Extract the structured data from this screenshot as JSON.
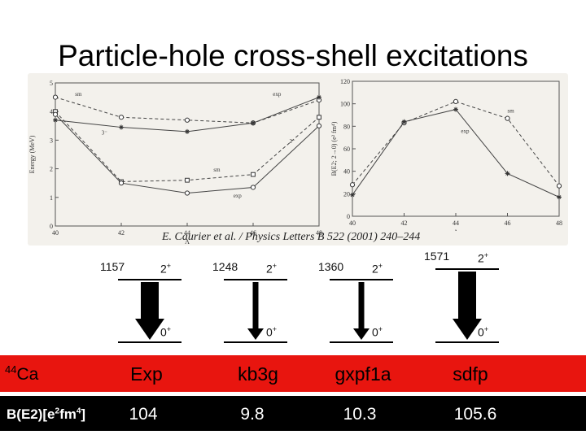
{
  "title": "Particle-hole cross-shell excitations",
  "citation": "E. Caurier et al. / Physics Letters B 522 (2001) 240–244",
  "chart_data": [
    {
      "type": "line",
      "xlabel": "A",
      "ylabel": "Energy (MeV)",
      "xlim": [
        40,
        48
      ],
      "ylim": [
        0,
        5
      ],
      "xticks": [
        "40",
        "42",
        "44",
        "46",
        "48"
      ],
      "yticks": [
        "0",
        "1",
        "2",
        "3",
        "4",
        "5"
      ],
      "annotations": [
        "sm",
        "exp",
        "3⁻",
        "sm",
        "exp",
        "2⁻"
      ],
      "series": [
        {
          "name": "sm",
          "x": [
            40,
            42,
            44,
            46,
            48
          ],
          "values": [
            4.5,
            3.8,
            3.7,
            3.6,
            4.4
          ]
        },
        {
          "name": "exp",
          "x": [
            40,
            42,
            44,
            46,
            48
          ],
          "values": [
            3.7,
            3.45,
            3.3,
            3.6,
            4.5
          ]
        },
        {
          "name": "sm",
          "x": [
            40,
            42,
            44,
            46,
            48
          ],
          "values": [
            4.0,
            1.55,
            1.6,
            1.8,
            3.8
          ]
        },
        {
          "name": "exp",
          "x": [
            40,
            42,
            44,
            46,
            48
          ],
          "values": [
            3.9,
            1.5,
            1.15,
            1.35,
            3.5
          ]
        }
      ]
    },
    {
      "type": "line",
      "xlabel": "A",
      "ylabel": "B(E2; 2→0) (e² fm⁴)",
      "xlim": [
        40,
        48
      ],
      "ylim": [
        0,
        120
      ],
      "xticks": [
        "40",
        "42",
        "44",
        "46",
        "48"
      ],
      "yticks": [
        "0",
        "20",
        "40",
        "60",
        "80",
        "100",
        "120"
      ],
      "annotations": [
        "sm",
        "exp"
      ],
      "series": [
        {
          "name": "sm",
          "x": [
            40,
            42,
            44,
            46,
            48
          ],
          "values": [
            28,
            83,
            102,
            87,
            27
          ]
        },
        {
          "name": "exp",
          "x": [
            40,
            42,
            44,
            46,
            48
          ],
          "values": [
            19,
            84,
            95,
            38,
            17
          ]
        }
      ]
    }
  ],
  "levels": [
    {
      "energy": "1157",
      "spin_upper": "2",
      "spin_lower": "0",
      "sign": "+",
      "arrow": "wide"
    },
    {
      "energy": "1248",
      "spin_upper": "2",
      "spin_lower": "0",
      "sign": "+",
      "arrow": "narrow"
    },
    {
      "energy": "1360",
      "spin_upper": "2",
      "spin_lower": "0",
      "sign": "+",
      "arrow": "narrow"
    },
    {
      "energy": "1571",
      "spin_upper": "2",
      "spin_lower": "0",
      "sign": "+",
      "arrow": "wide"
    }
  ],
  "table": {
    "nucleus_mass": "44",
    "nucleus_symbol": "Ca",
    "columns": [
      "Exp",
      "kb3g",
      "gxpf1a",
      "sdfp"
    ],
    "row_label": "B(E2)[e2fm4]",
    "values": [
      "104",
      "9.8",
      "10.3",
      "105.6"
    ]
  },
  "colors": {
    "red_band": "#e8150f",
    "black_band": "#000000",
    "panel": "#f3f1ec"
  }
}
